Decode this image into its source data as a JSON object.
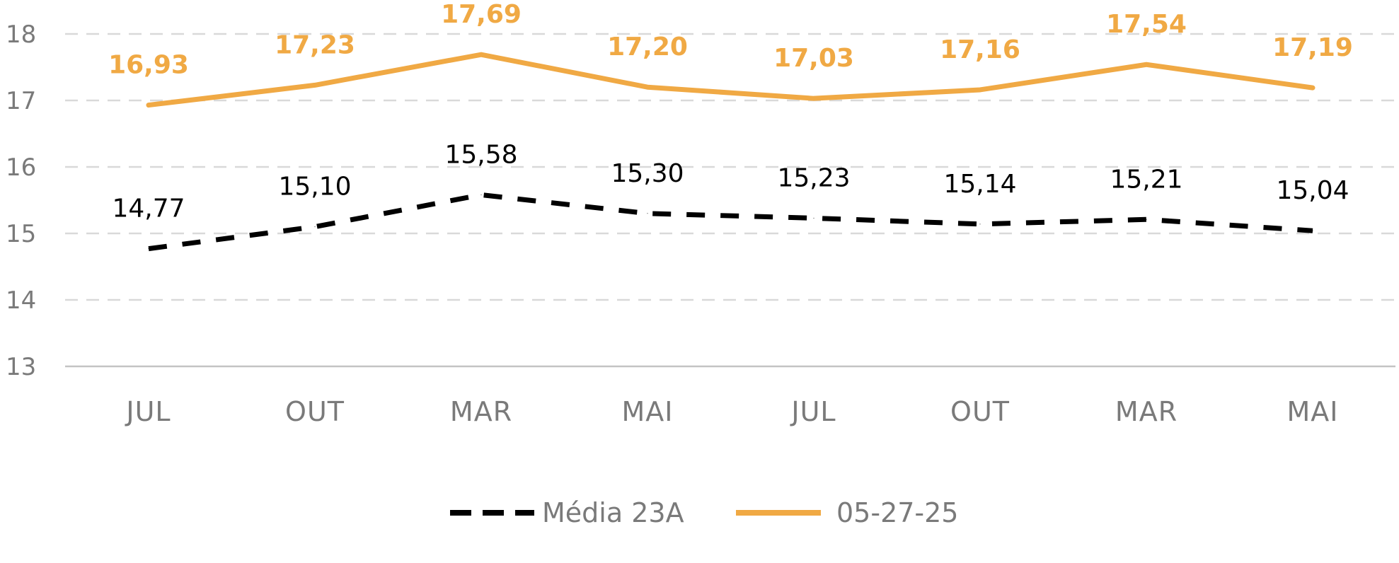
{
  "chart_data": {
    "type": "line",
    "categories": [
      "JUL",
      "OUT",
      "MAR",
      "MAI",
      "JUL",
      "OUT",
      "MAR",
      "MAI"
    ],
    "ylim": [
      13,
      18
    ],
    "yticks": [
      "13",
      "14",
      "15",
      "16",
      "17",
      "18"
    ],
    "grid": true,
    "legend_position": "bottom-center",
    "series": [
      {
        "name": "Média 23A",
        "color": "#000000",
        "style": "dashed",
        "values": [
          14.77,
          15.1,
          15.58,
          15.3,
          15.23,
          15.14,
          15.21,
          15.04
        ],
        "labels": [
          "14,77",
          "15,10",
          "15,58",
          "15,30",
          "15,23",
          "15,14",
          "15,21",
          "15,04"
        ]
      },
      {
        "name": "05-27-25",
        "color": "#F0A944",
        "style": "solid",
        "values": [
          16.93,
          17.23,
          17.69,
          17.2,
          17.03,
          17.16,
          17.54,
          17.19
        ],
        "labels": [
          "16,93",
          "17,23",
          "17,69",
          "17,20",
          "17,03",
          "17,16",
          "17,54",
          "17,19"
        ]
      }
    ]
  }
}
